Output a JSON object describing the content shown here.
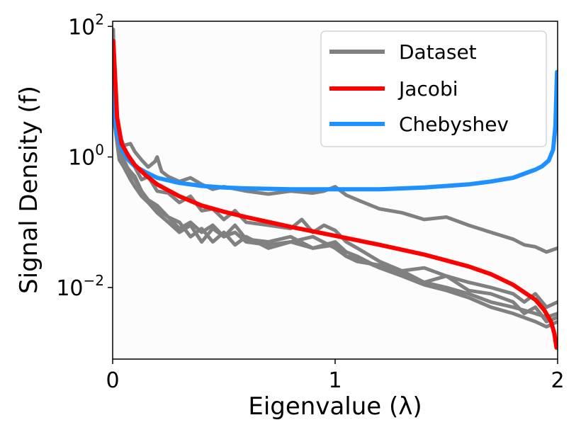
{
  "chart_data": {
    "type": "line",
    "xlabel": "Eigenvalue (λ)",
    "ylabel": "Signal Density (f)",
    "xlim": [
      0,
      2
    ],
    "ylim": [
      0.0008,
      120
    ],
    "yscale": "log",
    "x_ticks": [
      {
        "value": 0,
        "label": "0"
      },
      {
        "value": 1,
        "label": "1"
      },
      {
        "value": 2,
        "label": "2"
      }
    ],
    "y_ticks": [
      {
        "value": 0.01,
        "base": "10",
        "exp": "−2"
      },
      {
        "value": 1,
        "base": "10",
        "exp": "0"
      },
      {
        "value": 100,
        "base": "10",
        "exp": "2"
      }
    ],
    "grid": false,
    "legend_position": "top-right",
    "legend": [
      "Dataset",
      "Jacobi",
      "Chebyshev"
    ],
    "colors": {
      "dataset": "#808080",
      "jacobi": "#ff0000",
      "chebyshev": "#1e90ff"
    },
    "series": [
      {
        "name": "Chebyshev",
        "color": "#1e90ff",
        "x": [
          0.003,
          0.01,
          0.02,
          0.04,
          0.07,
          0.1,
          0.15,
          0.2,
          0.3,
          0.4,
          0.5,
          0.6,
          0.8,
          1.0,
          1.2,
          1.4,
          1.6,
          1.7,
          1.8,
          1.9,
          1.93,
          1.96,
          1.98,
          1.99,
          1.997
        ],
        "y": [
          20,
          4,
          2.2,
          1.3,
          0.9,
          0.72,
          0.58,
          0.48,
          0.4,
          0.36,
          0.34,
          0.33,
          0.32,
          0.32,
          0.32,
          0.34,
          0.38,
          0.42,
          0.48,
          0.64,
          0.72,
          0.88,
          1.3,
          3,
          20
        ]
      },
      {
        "name": "Jacobi",
        "color": "#ff0000",
        "x": [
          0.003,
          0.01,
          0.02,
          0.04,
          0.07,
          0.1,
          0.15,
          0.2,
          0.3,
          0.4,
          0.5,
          0.6,
          0.8,
          1.0,
          1.2,
          1.4,
          1.6,
          1.7,
          1.8,
          1.9,
          1.94,
          1.97,
          1.985,
          1.995
        ],
        "y": [
          60,
          20,
          4,
          1.6,
          1.05,
          0.75,
          0.52,
          0.38,
          0.25,
          0.18,
          0.145,
          0.12,
          0.085,
          0.062,
          0.045,
          0.032,
          0.021,
          0.016,
          0.011,
          0.0065,
          0.0045,
          0.003,
          0.002,
          0.0012
        ]
      },
      {
        "name": "",
        "color": "#808080",
        "x": [
          0.003,
          0.01,
          0.03,
          0.05,
          0.08,
          0.1,
          0.13,
          0.16,
          0.19,
          0.2,
          0.22,
          0.25,
          0.3,
          0.35,
          0.4,
          0.45,
          0.5,
          0.6,
          0.7,
          0.8,
          0.9,
          0.95,
          1.0,
          1.05,
          1.1,
          1.2,
          1.3,
          1.4,
          1.5,
          1.6,
          1.7,
          1.8,
          1.85,
          1.9,
          1.95,
          2.0
        ],
        "y": [
          40,
          5,
          2.2,
          1.5,
          1.6,
          1.2,
          0.9,
          0.7,
          0.85,
          1.0,
          0.6,
          0.5,
          0.42,
          0.48,
          0.38,
          0.32,
          0.35,
          0.3,
          0.27,
          0.3,
          0.28,
          0.3,
          0.35,
          0.26,
          0.22,
          0.16,
          0.14,
          0.11,
          0.12,
          0.09,
          0.07,
          0.055,
          0.045,
          0.042,
          0.035,
          0.04
        ]
      },
      {
        "name": "",
        "color": "#808080",
        "x": [
          0.003,
          0.01,
          0.03,
          0.05,
          0.08,
          0.1,
          0.13,
          0.16,
          0.2,
          0.25,
          0.3,
          0.35,
          0.4,
          0.45,
          0.5,
          0.55,
          0.6,
          0.7,
          0.8,
          0.85,
          0.9,
          0.95,
          1.0,
          1.05,
          1.1,
          1.2,
          1.3,
          1.4,
          1.5,
          1.6,
          1.7,
          1.8,
          1.85,
          1.9,
          1.95,
          2.0
        ],
        "y": [
          90,
          8,
          1.5,
          1.2,
          0.9,
          0.7,
          0.45,
          0.5,
          0.3,
          0.28,
          0.2,
          0.25,
          0.15,
          0.16,
          0.11,
          0.15,
          0.1,
          0.09,
          0.08,
          0.11,
          0.07,
          0.09,
          0.075,
          0.05,
          0.04,
          0.025,
          0.018,
          0.02,
          0.015,
          0.012,
          0.01,
          0.008,
          0.006,
          0.008,
          0.005,
          0.006
        ]
      },
      {
        "name": "",
        "color": "#808080",
        "x": [
          0.003,
          0.01,
          0.03,
          0.05,
          0.08,
          0.1,
          0.13,
          0.16,
          0.2,
          0.25,
          0.3,
          0.35,
          0.4,
          0.45,
          0.5,
          0.55,
          0.6,
          0.7,
          0.8,
          0.9,
          1.0,
          1.05,
          1.1,
          1.2,
          1.3,
          1.4,
          1.5,
          1.6,
          1.7,
          1.8,
          1.85,
          1.9,
          1.95,
          2.0
        ],
        "y": [
          30,
          5,
          1.0,
          0.8,
          0.6,
          0.5,
          0.3,
          0.22,
          0.18,
          0.12,
          0.08,
          0.1,
          0.07,
          0.09,
          0.06,
          0.07,
          0.05,
          0.045,
          0.05,
          0.04,
          0.045,
          0.03,
          0.025,
          0.022,
          0.018,
          0.012,
          0.015,
          0.009,
          0.008,
          0.006,
          0.004,
          0.005,
          0.003,
          0.0035
        ]
      },
      {
        "name": "",
        "color": "#808080",
        "x": [
          0.003,
          0.01,
          0.03,
          0.05,
          0.08,
          0.1,
          0.13,
          0.16,
          0.2,
          0.25,
          0.3,
          0.35,
          0.4,
          0.45,
          0.5,
          0.55,
          0.6,
          0.7,
          0.8,
          0.9,
          1.0,
          1.05,
          1.1,
          1.2,
          1.3,
          1.4,
          1.5,
          1.6,
          1.7,
          1.8,
          1.9,
          1.95,
          2.0
        ],
        "y": [
          20,
          3,
          0.9,
          0.7,
          0.45,
          0.35,
          0.25,
          0.2,
          0.14,
          0.1,
          0.07,
          0.09,
          0.05,
          0.08,
          0.06,
          0.09,
          0.055,
          0.05,
          0.06,
          0.04,
          0.05,
          0.035,
          0.03,
          0.02,
          0.015,
          0.011,
          0.009,
          0.007,
          0.005,
          0.004,
          0.003,
          0.0025,
          0.003
        ]
      },
      {
        "name": "",
        "color": "#808080",
        "x": [
          0.003,
          0.01,
          0.03,
          0.05,
          0.08,
          0.1,
          0.13,
          0.16,
          0.2,
          0.25,
          0.3,
          0.35,
          0.4,
          0.45,
          0.5,
          0.55,
          0.6,
          0.7,
          0.8,
          0.9,
          1.0,
          1.05,
          1.1,
          1.2,
          1.3,
          1.4,
          1.5,
          1.6,
          1.7,
          1.8,
          1.9,
          1.95,
          2.0
        ],
        "y": [
          25,
          4,
          1.2,
          0.9,
          0.55,
          0.45,
          0.3,
          0.2,
          0.16,
          0.12,
          0.1,
          0.06,
          0.08,
          0.05,
          0.07,
          0.045,
          0.06,
          0.04,
          0.05,
          0.06,
          0.04,
          0.03,
          0.028,
          0.02,
          0.016,
          0.012,
          0.01,
          0.008,
          0.006,
          0.005,
          0.004,
          0.0035,
          0.004
        ]
      }
    ]
  }
}
